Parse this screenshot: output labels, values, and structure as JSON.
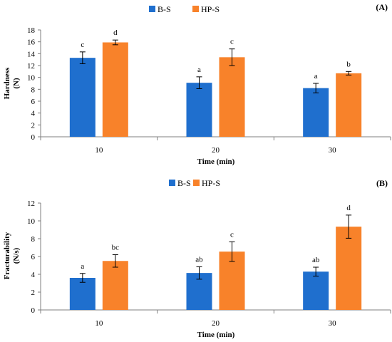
{
  "chart_data": [
    {
      "type": "bar",
      "panel_label": "(A)",
      "categories": [
        "10",
        "20",
        "30"
      ],
      "series": [
        {
          "name": "B-S",
          "color": "#1f6fce",
          "values": [
            13.3,
            9.1,
            8.2
          ],
          "errors": [
            1.0,
            1.0,
            0.8
          ],
          "labels": [
            "c",
            "a",
            "a"
          ]
        },
        {
          "name": "HP-S",
          "color": "#f8822a",
          "values": [
            15.9,
            13.4,
            10.7
          ],
          "errors": [
            0.4,
            1.4,
            0.3
          ],
          "labels": [
            "d",
            "c",
            "b"
          ]
        }
      ],
      "xlabel": "Time (min)",
      "ylabel_line1": "Hardness",
      "ylabel_line2": "(N)",
      "ylim": [
        0,
        18
      ],
      "ytick_step": 2,
      "legend": "top-center"
    },
    {
      "type": "bar",
      "panel_label": "(B)",
      "categories": [
        "10",
        "20",
        "30"
      ],
      "series": [
        {
          "name": "B-S",
          "color": "#1f6fce",
          "values": [
            3.6,
            4.15,
            4.3
          ],
          "errors": [
            0.5,
            0.7,
            0.5
          ],
          "labels": [
            "a",
            "ab",
            "ab"
          ]
        },
        {
          "name": "HP-S",
          "color": "#f8822a",
          "values": [
            5.5,
            6.55,
            9.35
          ],
          "errors": [
            0.7,
            1.1,
            1.3
          ],
          "labels": [
            "bc",
            "c",
            "d"
          ]
        }
      ],
      "xlabel": "Time (min)",
      "ylabel_line1": "Fracturability",
      "ylabel_line2": "(N/s)",
      "ylim": [
        0,
        12
      ],
      "ytick_step": 2,
      "legend": "top-center"
    }
  ]
}
